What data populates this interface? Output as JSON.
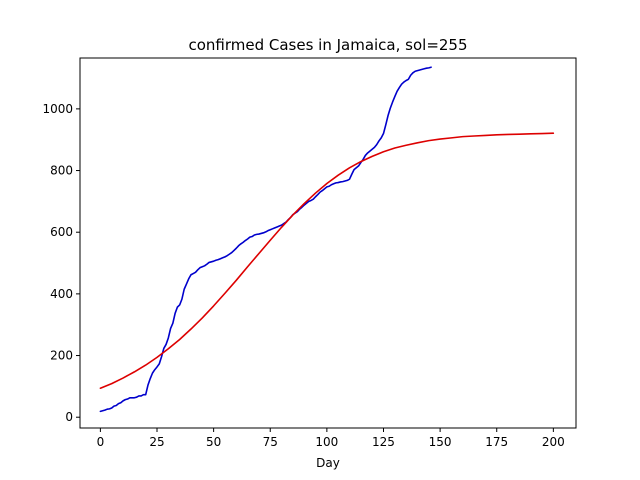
{
  "chart_data": {
    "type": "line",
    "title": "confirmed Cases in Jamaica, sol=255",
    "xlabel": "Day",
    "ylabel": "",
    "xlim": [
      -9,
      210
    ],
    "ylim": [
      -35,
      1165
    ],
    "xticks": [
      0,
      25,
      50,
      75,
      100,
      125,
      150,
      175,
      200
    ],
    "yticks": [
      0,
      200,
      400,
      600,
      800,
      1000
    ],
    "grid": false,
    "series": [
      {
        "color": "#0000cc",
        "x": [
          0,
          1,
          2,
          3,
          4,
          5,
          6,
          7,
          8,
          9,
          10,
          11,
          12,
          13,
          14,
          15,
          16,
          17,
          18,
          19,
          20,
          21,
          22,
          23,
          24,
          25,
          26,
          27,
          28,
          29,
          30,
          31,
          32,
          33,
          34,
          35,
          36,
          37,
          38,
          39,
          40,
          41,
          42,
          43,
          44,
          45,
          46,
          47,
          48,
          49,
          50,
          51,
          52,
          53,
          54,
          55,
          56,
          57,
          58,
          59,
          60,
          61,
          62,
          63,
          64,
          65,
          66,
          67,
          68,
          69,
          70,
          71,
          72,
          73,
          74,
          75,
          76,
          77,
          78,
          79,
          80,
          81,
          82,
          83,
          84,
          85,
          86,
          87,
          88,
          89,
          90,
          91,
          92,
          93,
          94,
          95,
          96,
          97,
          98,
          99,
          100,
          101,
          102,
          103,
          104,
          105,
          106,
          107,
          108,
          109,
          110,
          111,
          112,
          113,
          114,
          115,
          116,
          117,
          118,
          119,
          120,
          121,
          122,
          123,
          124,
          125,
          126,
          127,
          128,
          129,
          130,
          131,
          132,
          133,
          134,
          135,
          136,
          137,
          138,
          139,
          140,
          141,
          142,
          143,
          144,
          145,
          146
        ],
        "y": [
          19,
          21,
          23,
          26,
          27,
          30,
          36,
          38,
          44,
          47,
          53,
          57,
          59,
          63,
          63,
          63,
          65,
          69,
          69,
          73,
          73,
          104,
          125,
          143,
          154,
          163,
          173,
          196,
          223,
          236,
          257,
          288,
          305,
          337,
          357,
          364,
          383,
          415,
          432,
          449,
          462,
          466,
          470,
          478,
          485,
          488,
          491,
          496,
          502,
          504,
          506,
          509,
          511,
          514,
          517,
          520,
          524,
          529,
          534,
          541,
          548,
          556,
          562,
          567,
          573,
          578,
          584,
          586,
          591,
          593,
          594,
          596,
          598,
          601,
          605,
          608,
          611,
          614,
          617,
          620,
          623,
          628,
          633,
          641,
          648,
          657,
          662,
          667,
          675,
          681,
          688,
          694,
          700,
          703,
          707,
          715,
          722,
          730,
          735,
          741,
          747,
          749,
          754,
          757,
          760,
          761,
          763,
          764,
          766,
          768,
          772,
          788,
          803,
          809,
          815,
          826,
          836,
          849,
          857,
          863,
          869,
          875,
          884,
          896,
          906,
          920,
          948,
          978,
          1002,
          1022,
          1040,
          1057,
          1069,
          1080,
          1087,
          1092,
          1096,
          1109,
          1117,
          1122,
          1124,
          1126,
          1128,
          1130,
          1132,
          1133,
          1135
        ]
      },
      {
        "color": "#dd0000",
        "x": [
          0,
          5,
          10,
          15,
          20,
          25,
          30,
          35,
          40,
          45,
          50,
          55,
          60,
          65,
          70,
          75,
          80,
          85,
          90,
          95,
          100,
          105,
          110,
          115,
          120,
          125,
          130,
          135,
          140,
          145,
          150,
          155,
          160,
          165,
          170,
          175,
          180,
          185,
          190,
          195,
          200
        ],
        "y": [
          94,
          109,
          127,
          147,
          169,
          194,
          222,
          252,
          286,
          322,
          361,
          402,
          444,
          488,
          531,
          574,
          616,
          656,
          693,
          727,
          758,
          785,
          809,
          829,
          846,
          861,
          873,
          882,
          890,
          897,
          902,
          906,
          910,
          912,
          914,
          916,
          917,
          918,
          919,
          920,
          921
        ]
      }
    ]
  }
}
